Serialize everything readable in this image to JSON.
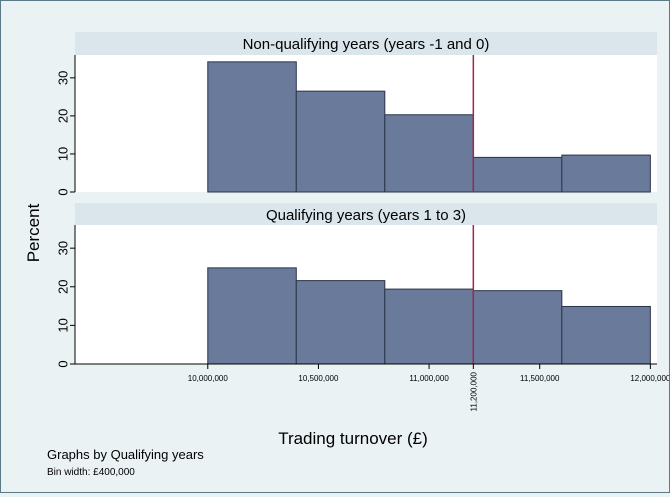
{
  "chart_data": {
    "type": "bar",
    "ylabel": "Percent",
    "xlabel": "Trading turnover (£)",
    "note": "Graphs by Qualifying years",
    "bin_width": "Bin width: £400,000",
    "bin_edges": [
      10000000,
      10400000,
      10800000,
      11200000,
      11600000,
      12000000
    ],
    "x_ticks": [
      10000000,
      10500000,
      11000000,
      11200000,
      11500000,
      12000000
    ],
    "x_tick_labels": [
      "10,000,000",
      "10,500,000",
      "11,000,000",
      "11,200,000",
      "11,500,000",
      "12,000,000"
    ],
    "xlim": [
      9400000,
      12030000
    ],
    "ylim": [
      0,
      36
    ],
    "y_ticks": [
      0,
      10,
      20,
      30
    ],
    "threshold": 11200000,
    "colors": {
      "bar": "#6a7a9b",
      "bar_edge": "#2b3448",
      "threshold": "#a0294b",
      "strip": "#dae6ec",
      "plot": "#ffffff",
      "background": "#eaf2f3"
    },
    "panels": [
      {
        "title": "Non-qualifying years (years -1 and 0)",
        "values": [
          34.2,
          26.5,
          20.3,
          9.1,
          9.7
        ]
      },
      {
        "title": "Qualifying years (years 1 to 3)",
        "values": [
          24.9,
          21.6,
          19.4,
          19.0,
          14.9
        ]
      }
    ]
  }
}
